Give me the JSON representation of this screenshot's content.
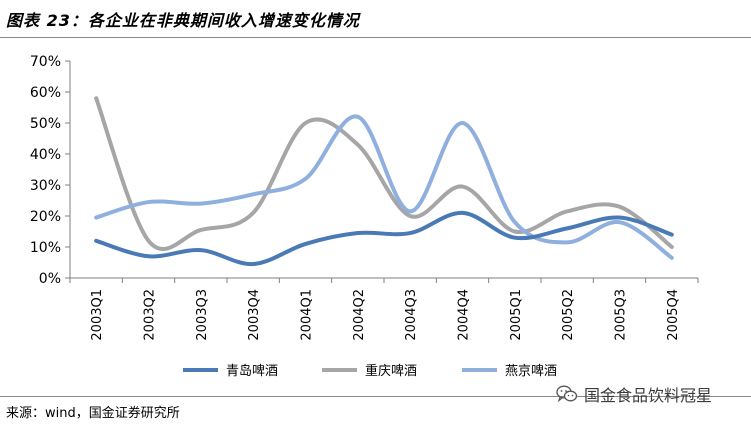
{
  "header": {
    "title": "图表 23：各企业在非典期间收入增速变化情况"
  },
  "chart_data": {
    "type": "line",
    "title": "",
    "xlabel": "",
    "ylabel": "",
    "categories": [
      "2003Q1",
      "2003Q2",
      "2003Q3",
      "2003Q4",
      "2004Q1",
      "2004Q2",
      "2004Q3",
      "2004Q4",
      "2005Q1",
      "2005Q2",
      "2005Q3",
      "2005Q4"
    ],
    "y_ticks": [
      "0%",
      "10%",
      "20%",
      "30%",
      "40%",
      "50%",
      "60%",
      "70%"
    ],
    "ylim": [
      0,
      70
    ],
    "grid": false,
    "legend_position": "bottom",
    "series": [
      {
        "name": "青岛啤酒",
        "color": "#4a7ab5",
        "values": [
          12,
          7,
          9,
          4.5,
          11,
          14.5,
          14.5,
          21,
          13,
          16,
          19.5,
          14
        ]
      },
      {
        "name": "重庆啤酒",
        "color": "#a6a6a6",
        "values": [
          58,
          12,
          15.5,
          21,
          50,
          43,
          20,
          29.5,
          15,
          21.5,
          23,
          10
        ]
      },
      {
        "name": "燕京啤酒",
        "color": "#8fb0df",
        "values": [
          19.5,
          24.5,
          24,
          27,
          32,
          52,
          21.5,
          50,
          18,
          11.5,
          18,
          6.5
        ]
      }
    ]
  },
  "footer": {
    "source": "来源：wind，国金证券研究所",
    "watermark": "国金食品饮料冠星",
    "icon": "wechat-icon"
  }
}
